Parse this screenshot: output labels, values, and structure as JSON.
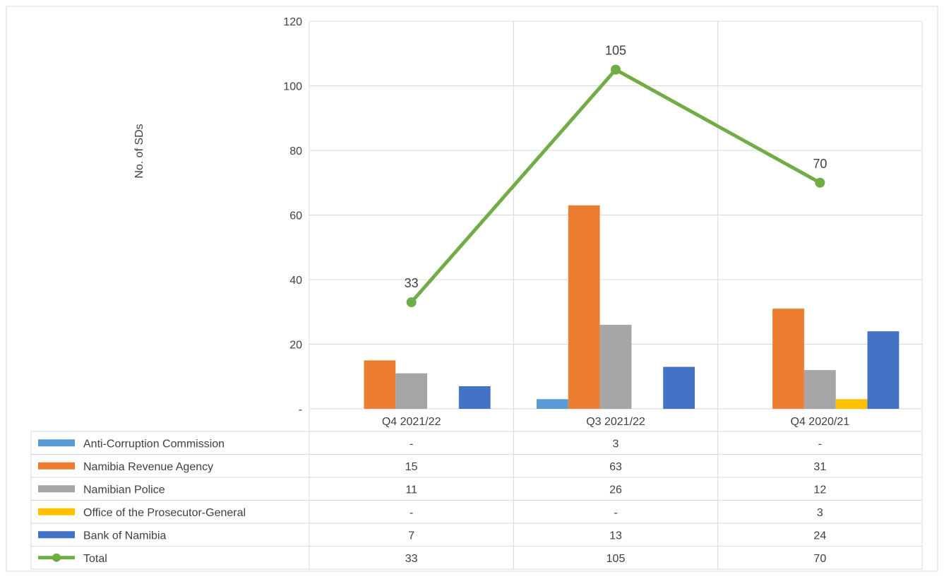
{
  "chart_data": {
    "type": "bar",
    "ylabel": "No. of SDs",
    "ylim": [
      0,
      120
    ],
    "yticks": [
      0,
      20,
      40,
      60,
      80,
      100,
      120
    ],
    "ytick_labels": [
      "-",
      "20",
      "40",
      "60",
      "80",
      "100",
      "120"
    ],
    "categories": [
      "Q4 2021/22",
      "Q3 2021/22",
      "Q4 2020/21"
    ],
    "series": [
      {
        "name": "Anti-Corruption Commission",
        "values": [
          0,
          3,
          0
        ],
        "display": [
          "-",
          "3",
          "-"
        ],
        "color": "#5b9bd5"
      },
      {
        "name": "Namibia Revenue Agency",
        "values": [
          15,
          63,
          31
        ],
        "display": [
          "15",
          "63",
          "31"
        ],
        "color": "#ed7d31"
      },
      {
        "name": "Namibian Police",
        "values": [
          11,
          26,
          12
        ],
        "display": [
          "11",
          "26",
          "12"
        ],
        "color": "#a5a5a5"
      },
      {
        "name": "Office of the Prosecutor-General",
        "values": [
          0,
          0,
          3
        ],
        "display": [
          "-",
          "-",
          "3"
        ],
        "color": "#ffc000"
      },
      {
        "name": "Bank of Namibia",
        "values": [
          7,
          13,
          24
        ],
        "display": [
          "7",
          "13",
          "24"
        ],
        "color": "#4472c4"
      }
    ],
    "line_series": {
      "name": "Total",
      "values": [
        33,
        105,
        70
      ],
      "display": [
        "33",
        "105",
        "70"
      ],
      "color": "#70ad47"
    },
    "grid": true,
    "legend": "data-table"
  }
}
